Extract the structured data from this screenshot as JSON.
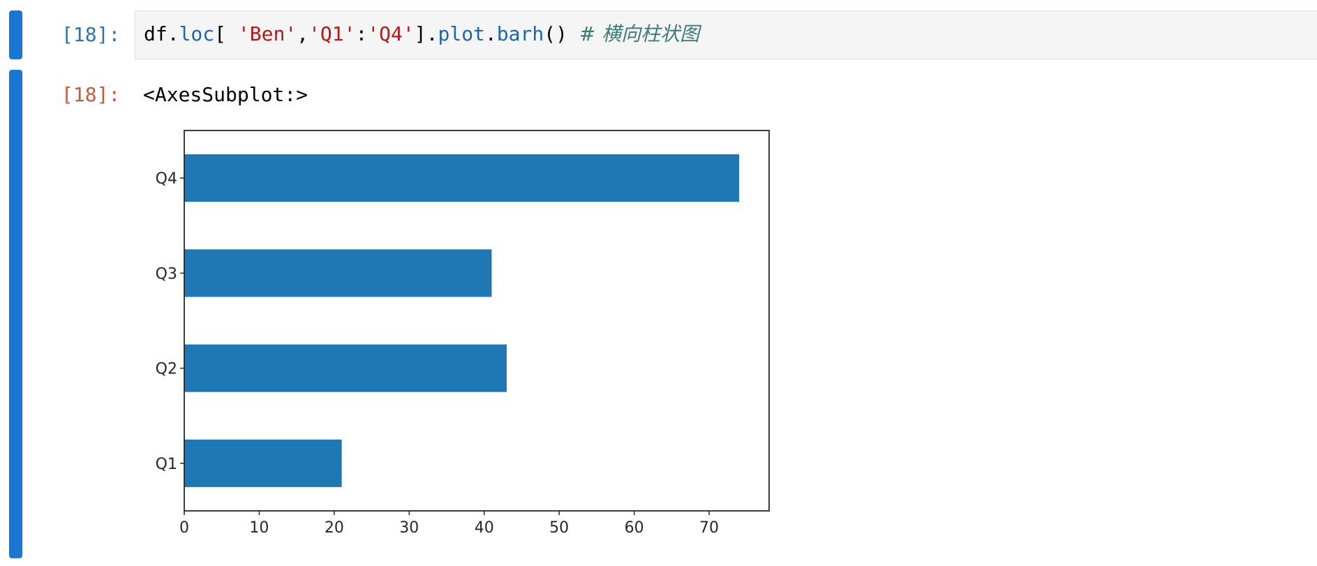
{
  "input_cell": {
    "prompt": "[18]:",
    "code": {
      "t1": "df",
      "t2": ".",
      "t3": "loc",
      "t4": "[ ",
      "t5": "'Ben'",
      "t6": ",",
      "t7": "'Q1'",
      "t8": ":",
      "t9": "'Q4'",
      "t10": "].",
      "t11": "plot",
      "t12": ".",
      "t13": "barh",
      "t14": "() ",
      "t15": "# 横向柱状图"
    }
  },
  "output_cell": {
    "prompt": "[18]:",
    "text": "<AxesSubplot:>"
  },
  "colors": {
    "cell_bar": "#1976d2",
    "bar_fill": "#1f77b4",
    "prompt_in": "#2f73b5",
    "prompt_out": "#c55a3b"
  },
  "chart_data": {
    "type": "bar",
    "orientation": "horizontal",
    "categories": [
      "Q1",
      "Q2",
      "Q3",
      "Q4"
    ],
    "values": [
      21,
      43,
      41,
      74
    ],
    "xlim": [
      0,
      78
    ],
    "xticks": [
      "0",
      "10",
      "20",
      "30",
      "40",
      "50",
      "60",
      "70"
    ],
    "grid": false,
    "title": "",
    "xlabel": "",
    "ylabel": ""
  }
}
